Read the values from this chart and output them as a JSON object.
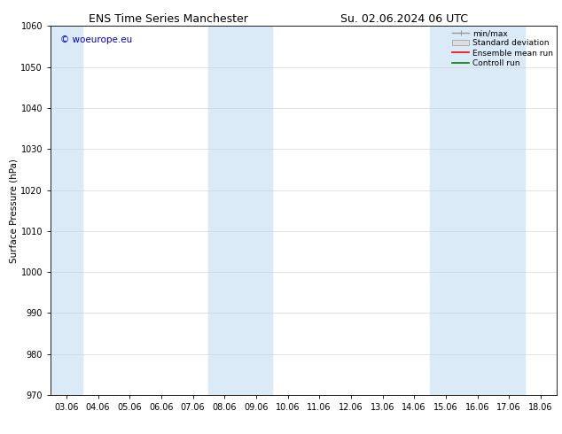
{
  "title_left": "ENS Time Series Manchester",
  "title_right": "Su. 02.06.2024 06 UTC",
  "ylabel": "Surface Pressure (hPa)",
  "ylim": [
    970,
    1060
  ],
  "yticks": [
    970,
    980,
    990,
    1000,
    1010,
    1020,
    1030,
    1040,
    1050,
    1060
  ],
  "xtick_labels": [
    "03.06",
    "04.06",
    "05.06",
    "06.06",
    "07.06",
    "08.06",
    "09.06",
    "10.06",
    "11.06",
    "12.06",
    "13.06",
    "14.06",
    "15.06",
    "16.06",
    "17.06",
    "18.06"
  ],
  "xlim_min": 0,
  "xlim_max": 15,
  "shaded_regions": [
    {
      "xmin": 0,
      "xmax": 1
    },
    {
      "xmin": 5,
      "xmax": 7
    },
    {
      "xmin": 12,
      "xmax": 15
    }
  ],
  "shaded_color": "#daeaf7",
  "background_color": "#ffffff",
  "watermark_text": "© woeurope.eu",
  "watermark_color": "#0000cc",
  "legend_labels": [
    "min/max",
    "Standard deviation",
    "Ensemble mean run",
    "Controll run"
  ],
  "legend_line_colors": [
    "#999999",
    "#cccccc",
    "#ff0000",
    "#008000"
  ],
  "title_fontsize": 9,
  "ylabel_fontsize": 7.5,
  "tick_fontsize": 7,
  "legend_fontsize": 6.5,
  "watermark_fontsize": 7.5
}
